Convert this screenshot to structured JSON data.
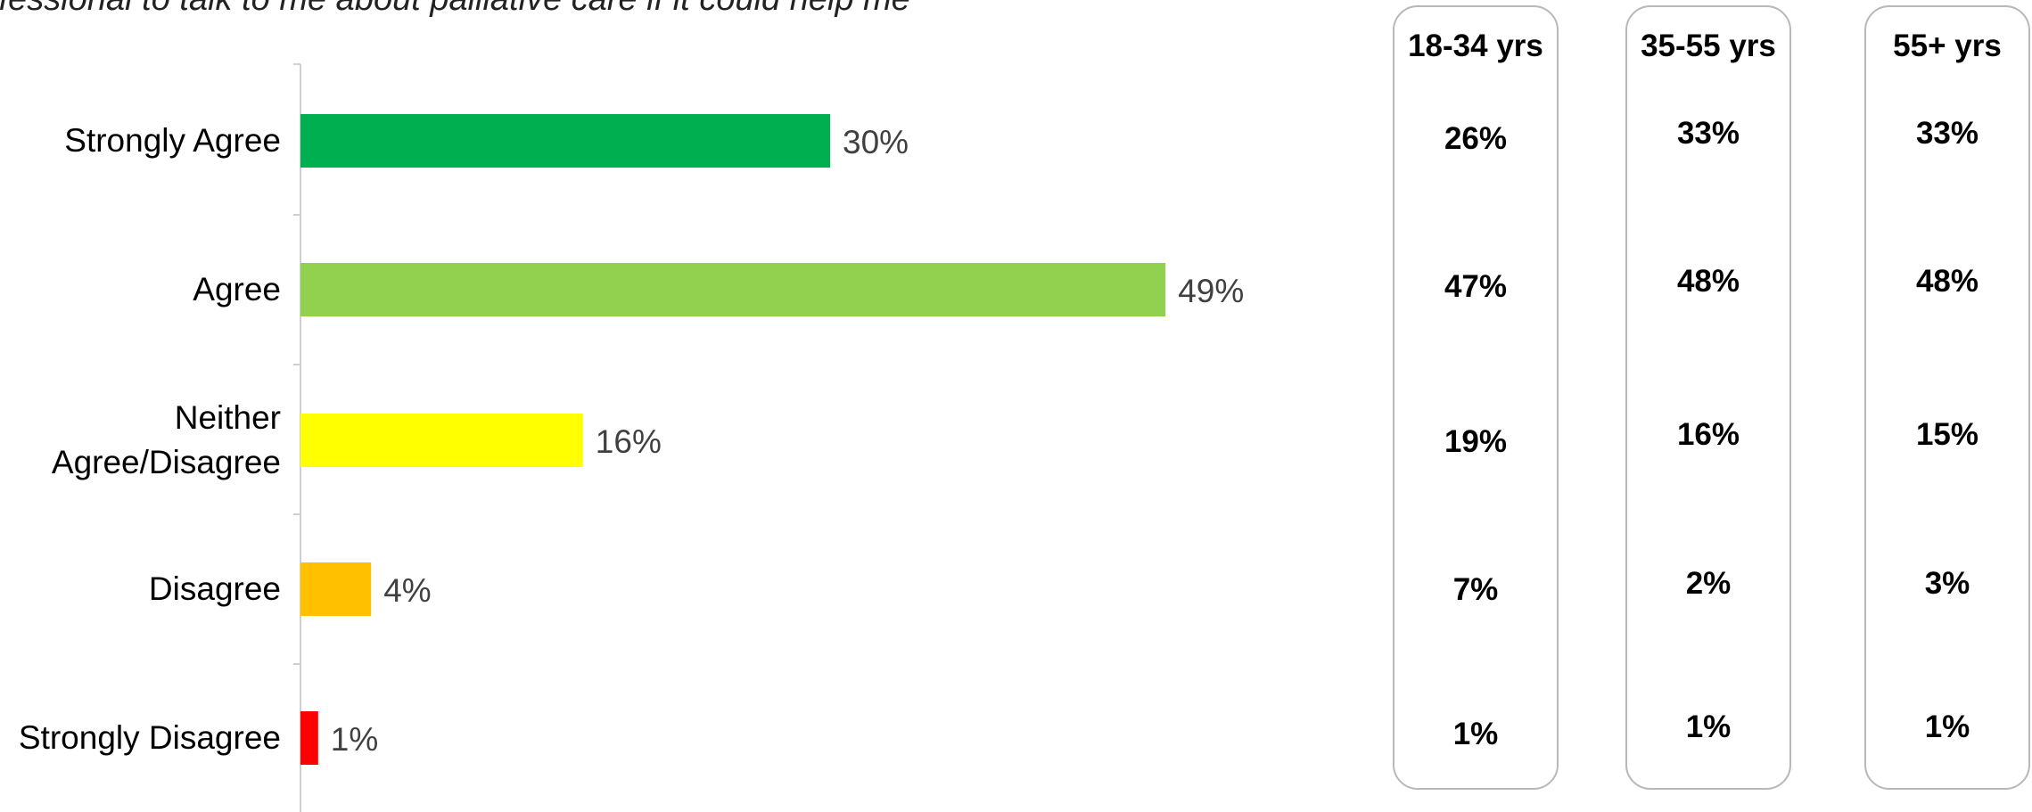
{
  "title": "e professional to talk to me about palliative care if it could help me",
  "chart_data": {
    "type": "bar",
    "orientation": "horizontal",
    "categories": [
      "Strongly Agree",
      "Agree",
      "Neither Agree/Disagree",
      "Disagree",
      "Strongly Disagree"
    ],
    "category_label_lines": [
      [
        "Strongly Agree"
      ],
      [
        "Agree"
      ],
      [
        "Neither",
        "Agree/Disagree"
      ],
      [
        "Disagree"
      ],
      [
        "Strongly Disagree"
      ]
    ],
    "values": [
      30,
      49,
      16,
      4,
      1
    ],
    "value_labels": [
      "30%",
      "49%",
      "16%",
      "4%",
      "1%"
    ],
    "colors": [
      "#00b050",
      "#92d050",
      "#ffff00",
      "#ffc000",
      "#ff0000"
    ],
    "xlim": [
      0,
      60
    ],
    "grid": false,
    "legend": "none"
  },
  "age_groups": [
    {
      "label": "18-34 yrs",
      "values": [
        "26%",
        "47%",
        "19%",
        "7%",
        "1%"
      ]
    },
    {
      "label": "35-55 yrs",
      "values": [
        "33%",
        "48%",
        "16%",
        "2%",
        "1%"
      ]
    },
    {
      "label": "55+ yrs",
      "values": [
        "33%",
        "48%",
        "15%",
        "3%",
        "1%"
      ]
    }
  ]
}
